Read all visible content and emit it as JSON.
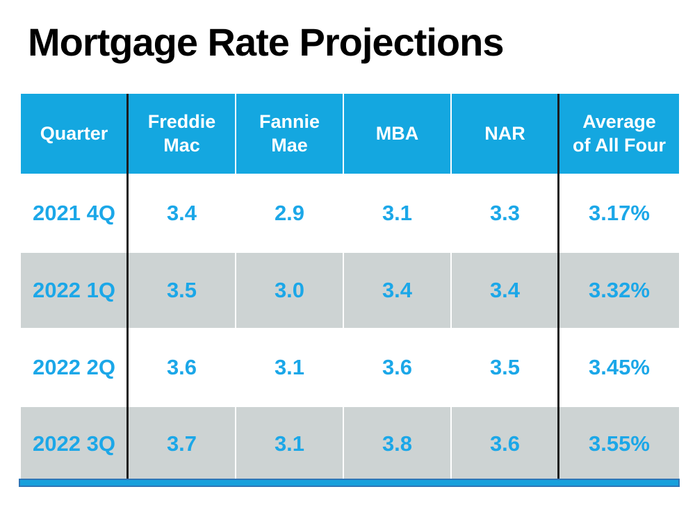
{
  "slide": {
    "title": "Mortgage Rate Projections"
  },
  "table": {
    "columns": [
      "Quarter",
      "Freddie Mac",
      "Fannie Mae",
      "MBA",
      "NAR",
      "Average of All Four"
    ],
    "rows": [
      {
        "cells": [
          "2021 4Q",
          "3.4",
          "2.9",
          "3.1",
          "3.3",
          "3.17%"
        ]
      },
      {
        "cells": [
          "2022 1Q",
          "3.5",
          "3.0",
          "3.4",
          "3.4",
          "3.32%"
        ]
      },
      {
        "cells": [
          "2022 2Q",
          "3.6",
          "3.1",
          "3.6",
          "3.5",
          "3.45%"
        ]
      },
      {
        "cells": [
          "2022 3Q",
          "3.7",
          "3.1",
          "3.8",
          "3.6",
          "3.55%"
        ]
      }
    ]
  },
  "colors": {
    "header_background": "#14a7e0",
    "alt_row_background": "#cdd3d3",
    "data_text_blue": "#1ba7e8",
    "divider_black": "#1c1c1c",
    "accent_bar_fill": "#18a0dc",
    "accent_bar_border": "#2e75b6",
    "title_text": "#000000"
  }
}
